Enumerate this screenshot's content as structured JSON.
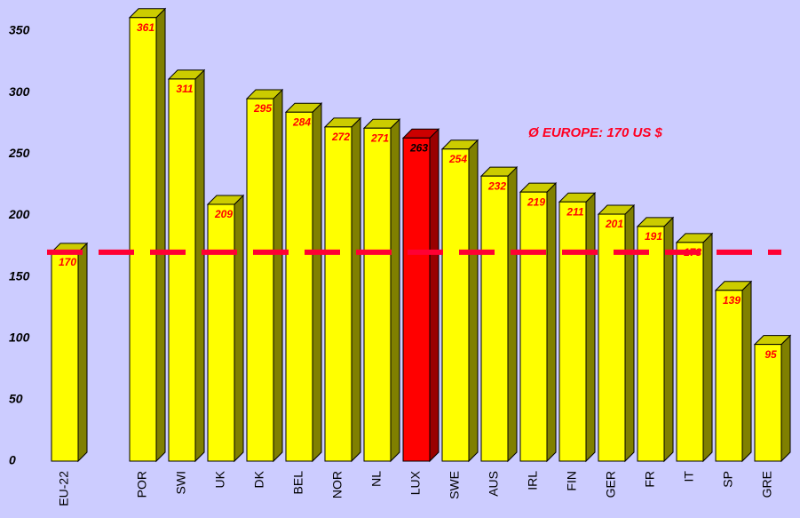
{
  "chart_data": {
    "type": "bar3d",
    "categories": [
      "EU-22",
      null,
      "POR",
      "SWI",
      "UK",
      "DK",
      "BEL",
      "NOR",
      "NL",
      "LUX",
      "SWE",
      "AUS",
      "IRL",
      "FIN",
      "GER",
      "FR",
      "IT",
      "SP",
      "GRE"
    ],
    "values": [
      170,
      null,
      361,
      311,
      209,
      295,
      284,
      272,
      271,
      263,
      254,
      232,
      219,
      211,
      201,
      191,
      178,
      139,
      95
    ],
    "colors": [
      "#ffff00",
      null,
      "#ffff00",
      "#ffff00",
      "#ffff00",
      "#ffff00",
      "#ffff00",
      "#ffff00",
      "#ffff00",
      "#ff0000",
      "#ffff00",
      "#ffff00",
      "#ffff00",
      "#ffff00",
      "#ffff00",
      "#ffff00",
      "#ffff00",
      "#ffff00",
      "#ffff00"
    ],
    "ylim": [
      0,
      375
    ],
    "yticks": [
      0,
      50,
      100,
      150,
      200,
      250,
      300,
      350
    ],
    "reference_value": 170,
    "reference_color": "#ff0033",
    "annotation": "Ø EUROPE: 170 US $"
  }
}
